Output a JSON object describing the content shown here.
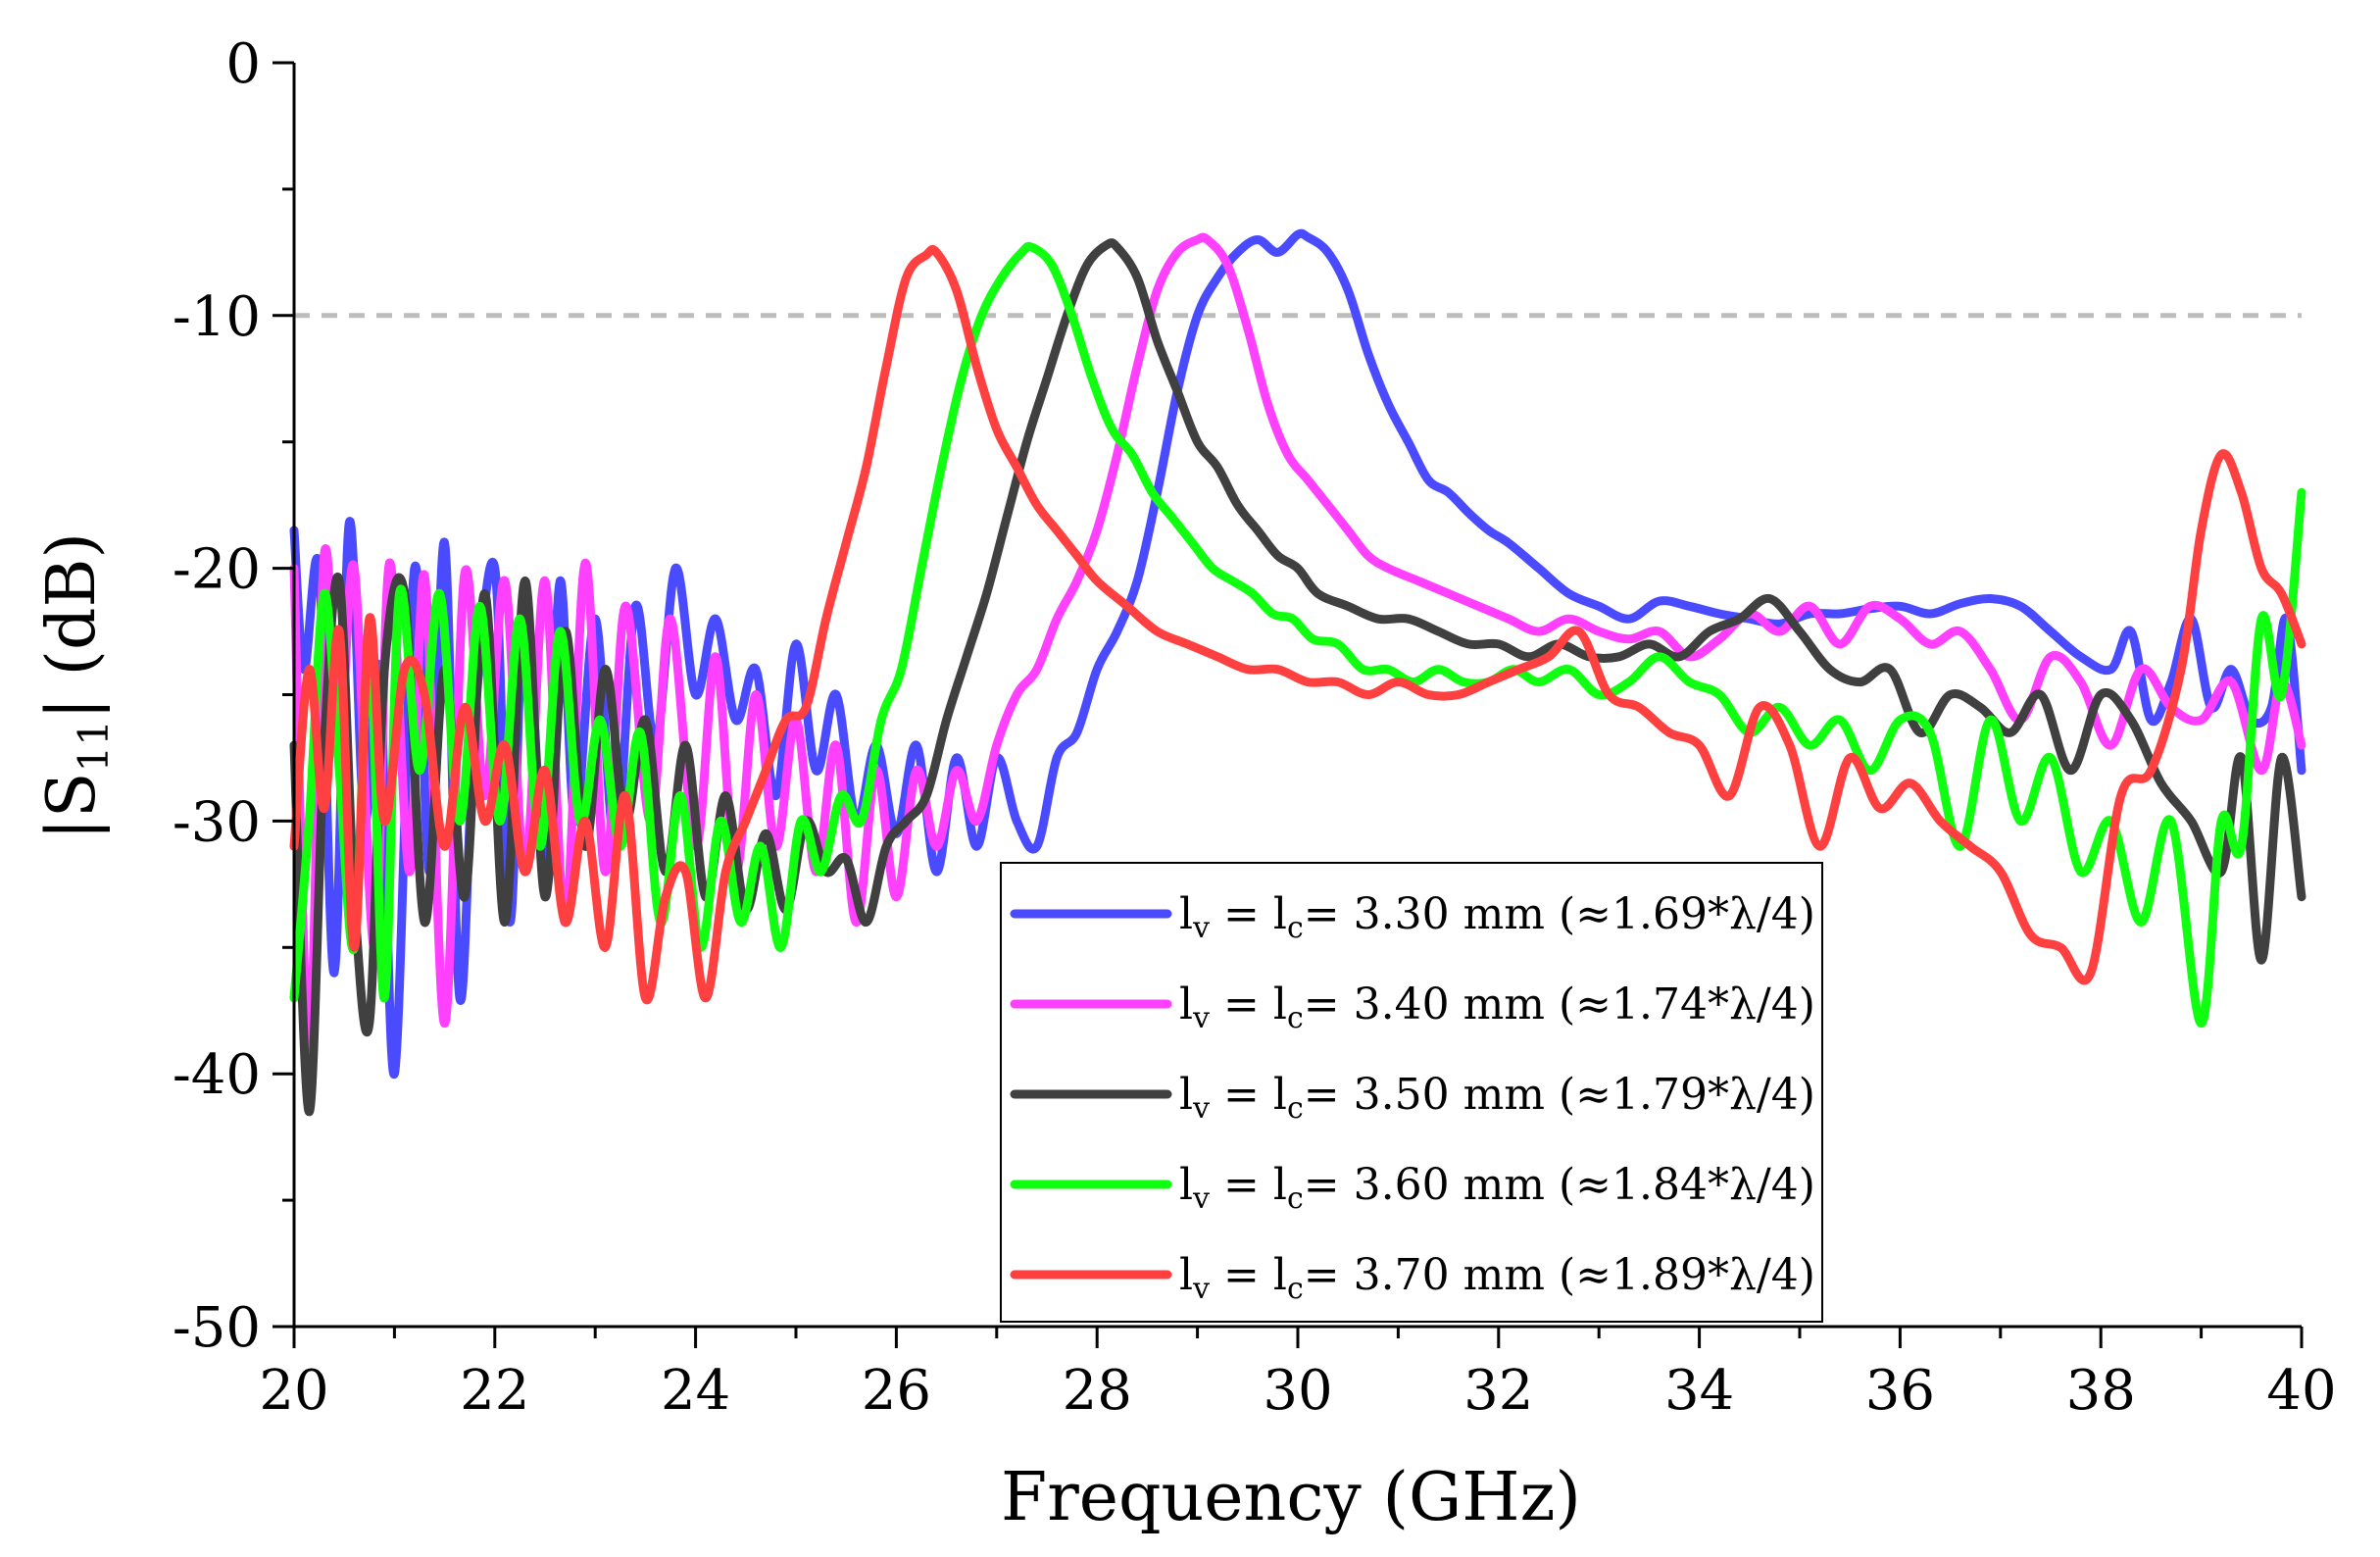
{
  "chart_data": {
    "type": "line",
    "title": "",
    "xlabel": "Frequency (GHz)",
    "ylabel": "|S11| (dB)",
    "ylabel_parts": {
      "pre": "|S",
      "sub": "11",
      "post": "| (dB)"
    },
    "xlim": [
      20,
      40
    ],
    "ylim": [
      -50,
      0
    ],
    "xticks": [
      "20",
      "22",
      "24",
      "26",
      "28",
      "30",
      "32",
      "34",
      "36",
      "38",
      "40"
    ],
    "yticks": [
      "0",
      "-10",
      "-20",
      "-30",
      "-40",
      "-50"
    ],
    "grid": false,
    "reference_line": {
      "y": -10,
      "style": "dashed",
      "color": "#bdbdbd"
    },
    "legend_position": "bottom-center",
    "series": [
      {
        "name": "lv = lc = 3.30 mm (≈1.69*λ/4)",
        "label_value": "= 3.30 mm (≈1.69*λ/4)",
        "color": "#4a4aff",
        "x": [
          20.0,
          20.1,
          20.25,
          20.4,
          20.55,
          20.7,
          20.85,
          21.0,
          21.2,
          21.35,
          21.5,
          21.65,
          21.8,
          22.0,
          22.15,
          22.3,
          22.5,
          22.65,
          22.8,
          23.0,
          23.2,
          23.4,
          23.6,
          23.8,
          24.0,
          24.2,
          24.4,
          24.6,
          24.8,
          25.0,
          25.2,
          25.4,
          25.6,
          25.8,
          26.0,
          26.2,
          26.4,
          26.6,
          26.8,
          27.0,
          27.2,
          27.4,
          27.6,
          27.8,
          28.0,
          28.2,
          28.4,
          28.6,
          28.8,
          29.0,
          29.2,
          29.4,
          29.6,
          29.8,
          30.0,
          30.1,
          30.3,
          30.5,
          30.7,
          30.9,
          31.1,
          31.3,
          31.5,
          31.7,
          31.9,
          32.1,
          32.4,
          32.7,
          33.0,
          33.3,
          33.6,
          33.9,
          34.2,
          34.5,
          34.8,
          35.1,
          35.4,
          35.7,
          36.0,
          36.3,
          36.6,
          36.9,
          37.2,
          37.5,
          37.8,
          38.1,
          38.3,
          38.5,
          38.7,
          38.9,
          39.1,
          39.3,
          39.5,
          39.7,
          39.85,
          40.0
        ],
        "y": [
          -18.5,
          -24,
          -20,
          -36,
          -18.2,
          -30,
          -24,
          -40,
          -20,
          -32,
          -19,
          -37,
          -26,
          -20,
          -34,
          -21,
          -32,
          -20.5,
          -30,
          -22,
          -31,
          -21.5,
          -27,
          -20,
          -25,
          -22,
          -26,
          -24,
          -29,
          -23,
          -28,
          -25,
          -30,
          -27,
          -30.5,
          -27,
          -32,
          -27.5,
          -31,
          -27.5,
          -30,
          -31,
          -27.5,
          -26.5,
          -24,
          -22.5,
          -20.5,
          -17,
          -13,
          -10,
          -8.5,
          -7.5,
          -7,
          -7.5,
          -6.8,
          -6.9,
          -7.5,
          -9,
          -11.5,
          -13.5,
          -15,
          -16.5,
          -17,
          -17.8,
          -18.5,
          -19,
          -20,
          -21,
          -21.5,
          -22,
          -21.3,
          -21.5,
          -21.8,
          -22,
          -22.2,
          -21.8,
          -21.8,
          -21.6,
          -21.5,
          -21.8,
          -21.4,
          -21.2,
          -21.5,
          -22.5,
          -23.5,
          -24,
          -22.5,
          -26,
          -24.5,
          -22,
          -25.5,
          -24,
          -26,
          -25.5,
          -22,
          -28
        ]
      },
      {
        "name": "lv = lc = 3.40 mm (≈1.74*λ/4)",
        "label_value": "= 3.40 mm (≈1.74*λ/4)",
        "color": "#ff40ff",
        "x": [
          20.0,
          20.15,
          20.3,
          20.45,
          20.6,
          20.8,
          20.95,
          21.15,
          21.3,
          21.5,
          21.7,
          21.9,
          22.1,
          22.3,
          22.5,
          22.7,
          22.9,
          23.1,
          23.3,
          23.55,
          23.75,
          24.0,
          24.2,
          24.4,
          24.6,
          24.8,
          25.0,
          25.2,
          25.4,
          25.6,
          25.8,
          26.0,
          26.2,
          26.4,
          26.6,
          26.8,
          27.0,
          27.2,
          27.4,
          27.6,
          27.8,
          28.0,
          28.2,
          28.4,
          28.6,
          28.8,
          29.0,
          29.1,
          29.3,
          29.5,
          29.7,
          29.9,
          30.1,
          30.3,
          30.5,
          30.7,
          30.9,
          31.2,
          31.5,
          31.8,
          32.1,
          32.4,
          32.7,
          33.0,
          33.3,
          33.6,
          33.9,
          34.2,
          34.5,
          34.8,
          35.1,
          35.4,
          35.7,
          36.0,
          36.3,
          36.6,
          36.9,
          37.2,
          37.5,
          37.8,
          38.1,
          38.4,
          38.7,
          39.0,
          39.3,
          39.6,
          39.8,
          40.0
        ],
        "y": [
          -20,
          -39,
          -19.5,
          -27,
          -20,
          -35,
          -19.8,
          -32,
          -20.3,
          -38,
          -20.2,
          -29,
          -20.5,
          -32,
          -20.5,
          -34,
          -19.8,
          -32,
          -21.5,
          -30,
          -22,
          -31,
          -23.5,
          -32,
          -25,
          -31,
          -26,
          -32,
          -27,
          -34,
          -28,
          -33,
          -28,
          -31,
          -28,
          -30,
          -27,
          -25,
          -24,
          -22,
          -20.5,
          -18.5,
          -15.5,
          -12,
          -9,
          -7.5,
          -7,
          -7,
          -8,
          -10.5,
          -13.5,
          -15.5,
          -16.5,
          -17.5,
          -18.5,
          -19.5,
          -20,
          -20.5,
          -21,
          -21.5,
          -22,
          -22.5,
          -22,
          -22.5,
          -22.8,
          -22.5,
          -23.5,
          -22.8,
          -21.8,
          -22.5,
          -21.5,
          -23,
          -21.5,
          -22,
          -23,
          -22.5,
          -24,
          -26,
          -23.5,
          -24.5,
          -27,
          -24,
          -25.5,
          -26,
          -24.5,
          -28,
          -24.5,
          -27
        ]
      },
      {
        "name": "lv = lc = 3.50 mm (≈1.79*λ/4)",
        "label_value": "= 3.50 mm (≈1.79*λ/4)",
        "color": "#404040",
        "x": [
          20.0,
          20.15,
          20.3,
          20.45,
          20.6,
          20.75,
          20.9,
          21.1,
          21.3,
          21.5,
          21.7,
          21.9,
          22.1,
          22.3,
          22.5,
          22.7,
          22.9,
          23.1,
          23.3,
          23.5,
          23.7,
          23.9,
          24.1,
          24.3,
          24.5,
          24.7,
          24.9,
          25.1,
          25.3,
          25.5,
          25.7,
          25.9,
          26.1,
          26.3,
          26.5,
          26.7,
          26.9,
          27.1,
          27.3,
          27.5,
          27.7,
          27.9,
          28.1,
          28.2,
          28.4,
          28.6,
          28.8,
          29.0,
          29.2,
          29.4,
          29.6,
          29.8,
          30.0,
          30.2,
          30.5,
          30.8,
          31.1,
          31.4,
          31.7,
          32.0,
          32.3,
          32.6,
          32.9,
          33.2,
          33.5,
          33.8,
          34.1,
          34.4,
          34.7,
          35.0,
          35.3,
          35.6,
          35.9,
          36.2,
          36.5,
          36.8,
          37.1,
          37.4,
          37.7,
          38.0,
          38.3,
          38.6,
          38.9,
          39.2,
          39.4,
          39.6,
          39.8,
          40.0
        ],
        "y": [
          -27,
          -41.5,
          -27,
          -20.5,
          -33,
          -38,
          -24,
          -21,
          -34,
          -24,
          -33,
          -21,
          -34,
          -20.5,
          -33,
          -22.5,
          -31,
          -24,
          -30,
          -26,
          -32,
          -27,
          -33,
          -29,
          -33.5,
          -30.5,
          -33.5,
          -30,
          -32,
          -31.5,
          -34,
          -31,
          -30,
          -29,
          -26,
          -23.5,
          -21,
          -18,
          -15,
          -12.5,
          -10,
          -8,
          -7.2,
          -7.3,
          -8.5,
          -11,
          -13,
          -15,
          -16,
          -17.5,
          -18.5,
          -19.5,
          -20,
          -21,
          -21.5,
          -22,
          -22,
          -22.5,
          -23,
          -23,
          -23.5,
          -23,
          -23.5,
          -23.5,
          -23,
          -23.5,
          -22.5,
          -22,
          -21.2,
          -22.5,
          -24,
          -24.5,
          -24,
          -26.5,
          -25,
          -25.5,
          -26.5,
          -25,
          -28,
          -25,
          -26,
          -28.5,
          -30,
          -32,
          -27.5,
          -35.5,
          -27.5,
          -33
        ]
      },
      {
        "name": "lv = lc = 3.60 mm (≈1.84*λ/4)",
        "label_value": "= 3.60 mm (≈1.84*λ/4)",
        "color": "#10ff10",
        "x": [
          20.0,
          20.15,
          20.3,
          20.45,
          20.6,
          20.75,
          20.9,
          21.05,
          21.25,
          21.45,
          21.65,
          21.85,
          22.05,
          22.25,
          22.45,
          22.65,
          22.85,
          23.05,
          23.25,
          23.45,
          23.65,
          23.85,
          24.05,
          24.25,
          24.45,
          24.65,
          24.85,
          25.05,
          25.25,
          25.45,
          25.65,
          25.85,
          26.05,
          26.25,
          26.45,
          26.65,
          26.85,
          27.05,
          27.25,
          27.35,
          27.55,
          27.75,
          27.95,
          28.15,
          28.35,
          28.55,
          28.75,
          28.95,
          29.15,
          29.35,
          29.55,
          29.75,
          29.95,
          30.15,
          30.4,
          30.65,
          30.9,
          31.15,
          31.4,
          31.65,
          31.9,
          32.15,
          32.4,
          32.7,
          33.0,
          33.3,
          33.6,
          33.9,
          34.2,
          34.5,
          34.8,
          35.1,
          35.4,
          35.7,
          36.0,
          36.3,
          36.6,
          36.9,
          37.2,
          37.5,
          37.8,
          38.1,
          38.4,
          38.7,
          39.0,
          39.2,
          39.4,
          39.6,
          39.8,
          40.0
        ],
        "y": [
          -37,
          -30,
          -21,
          -28,
          -35,
          -23,
          -37,
          -21,
          -28,
          -21,
          -30,
          -21.5,
          -30,
          -22,
          -31,
          -22.5,
          -30,
          -26,
          -31,
          -26.5,
          -34,
          -29,
          -35,
          -30,
          -34,
          -31,
          -35,
          -30,
          -32,
          -29,
          -30,
          -26,
          -24,
          -20,
          -16,
          -12.5,
          -10,
          -8.5,
          -7.5,
          -7.3,
          -8,
          -10,
          -12.5,
          -14.5,
          -15.5,
          -17,
          -18,
          -19,
          -20,
          -20.5,
          -21,
          -21.8,
          -22,
          -22.8,
          -23,
          -24,
          -24,
          -24.5,
          -24,
          -24.5,
          -24.5,
          -24,
          -24.5,
          -24,
          -25,
          -24.5,
          -23.5,
          -24.5,
          -25,
          -26.5,
          -25.5,
          -27,
          -26,
          -28,
          -26,
          -26.5,
          -31,
          -26,
          -30,
          -27.5,
          -32,
          -30,
          -34,
          -30,
          -38,
          -30,
          -31,
          -22,
          -25,
          -17
        ]
      },
      {
        "name": "lv = lc = 3.70 mm (≈1.89*λ/4)",
        "label_value": "= 3.70 mm (≈1.89*λ/4)",
        "color": "#ff4040",
        "x": [
          20.0,
          20.15,
          20.3,
          20.45,
          20.6,
          20.75,
          20.9,
          21.1,
          21.3,
          21.5,
          21.7,
          21.9,
          22.1,
          22.3,
          22.5,
          22.7,
          22.9,
          23.1,
          23.3,
          23.5,
          23.7,
          23.9,
          24.1,
          24.3,
          24.5,
          24.7,
          24.9,
          25.1,
          25.3,
          25.5,
          25.7,
          25.9,
          26.1,
          26.3,
          26.4,
          26.6,
          26.8,
          27.0,
          27.2,
          27.4,
          27.6,
          27.8,
          28.0,
          28.3,
          28.6,
          28.9,
          29.2,
          29.5,
          29.8,
          30.1,
          30.4,
          30.7,
          31.0,
          31.3,
          31.6,
          31.9,
          32.2,
          32.5,
          32.8,
          33.1,
          33.4,
          33.7,
          34.0,
          34.3,
          34.6,
          34.9,
          35.2,
          35.5,
          35.8,
          36.1,
          36.4,
          36.7,
          37.0,
          37.3,
          37.6,
          37.9,
          38.2,
          38.5,
          38.8,
          39.0,
          39.2,
          39.4,
          39.6,
          39.8,
          40.0
        ],
        "y": [
          -31,
          -24,
          -29.5,
          -22.5,
          -35,
          -22,
          -30,
          -24,
          -25,
          -31,
          -25.5,
          -30,
          -27,
          -32,
          -28,
          -34,
          -30,
          -35,
          -29,
          -37,
          -33,
          -32,
          -37,
          -32,
          -30,
          -28,
          -26,
          -25.5,
          -22,
          -19,
          -16,
          -12,
          -8.5,
          -7.6,
          -7.5,
          -9,
          -12,
          -14.5,
          -16,
          -17.5,
          -18.5,
          -19.5,
          -20.5,
          -21.5,
          -22.5,
          -23,
          -23.5,
          -24,
          -24,
          -24.5,
          -24.5,
          -25,
          -24.5,
          -25,
          -25,
          -24.5,
          -24,
          -23.5,
          -22.5,
          -25,
          -25.5,
          -26.5,
          -27,
          -29,
          -25.5,
          -27,
          -31,
          -27.5,
          -29.5,
          -28.5,
          -30,
          -31,
          -32,
          -34.5,
          -35,
          -36,
          -29,
          -28,
          -24,
          -18.5,
          -15.5,
          -17,
          -20,
          -21,
          -23
        ]
      }
    ]
  }
}
